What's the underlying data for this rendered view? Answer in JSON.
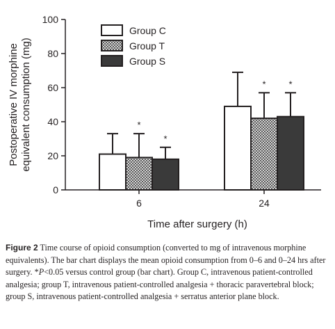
{
  "chart_data": {
    "type": "bar",
    "categories": [
      "6",
      "24"
    ],
    "series": [
      {
        "name": "Group C",
        "values": [
          21,
          49
        ],
        "error_upper": [
          33,
          69
        ],
        "significant": [
          false,
          false
        ],
        "fill": "#ffffff"
      },
      {
        "name": "Group T",
        "values": [
          19,
          42
        ],
        "error_upper": [
          33,
          57
        ],
        "significant": [
          true,
          true
        ],
        "fill": "checkered"
      },
      {
        "name": "Group S",
        "values": [
          18,
          43
        ],
        "error_upper": [
          25,
          57
        ],
        "significant": [
          true,
          true
        ],
        "fill": "#3a3a3a"
      }
    ],
    "xlabel": "Time after surgery (h)",
    "ylabel": "Postoperative IV morphine equivalent consumption (mg)",
    "ylabel_lines": [
      "Postoperative IV morphine",
      "equivalent consumption (mg)"
    ],
    "ylim": [
      0,
      100
    ],
    "yticks": [
      0,
      20,
      40,
      60,
      80,
      100
    ],
    "significance_marker": "*",
    "grid": false,
    "legend_placement": "top-left"
  },
  "caption": {
    "label": "Figure 2",
    "text_before_p": " Time course of opioid consumption (converted to mg of intravenous morphine equivalents). The bar chart displays the mean opioid consumption from 0–6 and 0–24 hrs after surgery. *",
    "p_symbol": "P",
    "text_after_p": "<0.05 versus control group (bar chart). Group C, intravenous patient-controlled analgesia; group T, intravenous patient-controlled analgesia + thoracic paravertebral block; group S, intravenous patient-controlled analgesia + serratus anterior plane block."
  }
}
